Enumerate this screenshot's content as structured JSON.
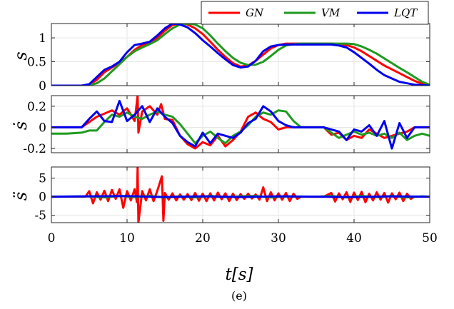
{
  "chart_data": [
    {
      "type": "line",
      "ylabel": "s",
      "xlim": [
        0,
        50
      ],
      "ylim": [
        0,
        1.3
      ],
      "yticks": [
        0,
        0.5,
        1
      ],
      "ytick_labels": [
        "0",
        "0.5",
        "1"
      ],
      "legend": {
        "position": "top-right",
        "entries": [
          "GN",
          "VM",
          "LQT"
        ]
      },
      "series": [
        {
          "name": "GN",
          "color": "#ff0000",
          "x": [
            0,
            4,
            5,
            6,
            7,
            8,
            9,
            10,
            11,
            12,
            13,
            14,
            15,
            16,
            17,
            18,
            19,
            20,
            21,
            22,
            23,
            24,
            25,
            26,
            27,
            28,
            29,
            30,
            31,
            32,
            33,
            34,
            35,
            36,
            37,
            38,
            39,
            40,
            41,
            42,
            43,
            44,
            45,
            46,
            47,
            48,
            49,
            50
          ],
          "y": [
            0,
            0,
            0.02,
            0.12,
            0.28,
            0.38,
            0.48,
            0.6,
            0.75,
            0.85,
            0.9,
            1.0,
            1.15,
            1.27,
            1.3,
            1.28,
            1.2,
            1.08,
            0.92,
            0.75,
            0.6,
            0.47,
            0.4,
            0.42,
            0.52,
            0.65,
            0.78,
            0.85,
            0.88,
            0.88,
            0.88,
            0.88,
            0.88,
            0.88,
            0.88,
            0.87,
            0.85,
            0.8,
            0.72,
            0.62,
            0.52,
            0.42,
            0.34,
            0.26,
            0.18,
            0.1,
            0.04,
            0
          ]
        },
        {
          "name": "VM",
          "color": "#1f9a1f",
          "x": [
            0,
            4,
            5,
            6,
            7,
            8,
            9,
            10,
            11,
            12,
            13,
            14,
            15,
            16,
            17,
            18,
            19,
            20,
            21,
            22,
            23,
            24,
            25,
            26,
            27,
            28,
            29,
            30,
            31,
            32,
            33,
            34,
            35,
            36,
            37,
            38,
            39,
            40,
            41,
            42,
            43,
            44,
            45,
            46,
            47,
            48,
            49,
            50
          ],
          "y": [
            0,
            0,
            0.01,
            0.05,
            0.15,
            0.3,
            0.45,
            0.6,
            0.72,
            0.8,
            0.87,
            0.95,
            1.08,
            1.2,
            1.28,
            1.3,
            1.28,
            1.2,
            1.05,
            0.88,
            0.72,
            0.58,
            0.48,
            0.43,
            0.44,
            0.5,
            0.62,
            0.75,
            0.84,
            0.87,
            0.88,
            0.88,
            0.88,
            0.88,
            0.88,
            0.88,
            0.88,
            0.87,
            0.82,
            0.75,
            0.67,
            0.57,
            0.47,
            0.37,
            0.28,
            0.18,
            0.08,
            0.02
          ]
        },
        {
          "name": "LQT",
          "color": "#0000ee",
          "x": [
            0,
            4,
            5,
            6,
            7,
            8,
            9,
            10,
            11,
            12,
            13,
            14,
            15,
            16,
            17,
            18,
            19,
            20,
            21,
            22,
            23,
            24,
            25,
            26,
            27,
            28,
            29,
            30,
            31,
            32,
            33,
            34,
            35,
            36,
            37,
            38,
            39,
            40,
            41,
            42,
            43,
            44,
            45,
            46,
            47,
            48,
            49,
            50
          ],
          "y": [
            0,
            0,
            0.03,
            0.18,
            0.33,
            0.4,
            0.5,
            0.7,
            0.85,
            0.88,
            0.92,
            1.05,
            1.2,
            1.3,
            1.28,
            1.22,
            1.1,
            0.95,
            0.82,
            0.68,
            0.55,
            0.43,
            0.38,
            0.4,
            0.52,
            0.72,
            0.82,
            0.85,
            0.86,
            0.86,
            0.86,
            0.86,
            0.86,
            0.86,
            0.86,
            0.84,
            0.8,
            0.7,
            0.58,
            0.46,
            0.33,
            0.22,
            0.15,
            0.08,
            0.05,
            0.02,
            0.01,
            0
          ]
        }
      ]
    },
    {
      "type": "line",
      "ylabel": "ṡ",
      "xlim": [
        0,
        50
      ],
      "ylim": [
        -0.24,
        0.3
      ],
      "yticks": [
        -0.2,
        0,
        0.2
      ],
      "ytick_labels": [
        "-0.2",
        "0",
        "0.2"
      ],
      "series": [
        {
          "name": "GN",
          "color": "#ff0000",
          "x": [
            0,
            4,
            5,
            6,
            7,
            8,
            9,
            10,
            11,
            11.4,
            11.5,
            12,
            13,
            14,
            14.5,
            15,
            16,
            17,
            18,
            19,
            20,
            21,
            22,
            23,
            24,
            25,
            26,
            27,
            28,
            29,
            30,
            31,
            32,
            36,
            37,
            38,
            39,
            40,
            41,
            42,
            43,
            44,
            45,
            46,
            47,
            48,
            49,
            50
          ],
          "y": [
            0,
            0,
            0.05,
            0.1,
            0.13,
            0.16,
            0.12,
            0.18,
            0.06,
            0.3,
            -0.05,
            0.15,
            0.2,
            0.12,
            0.22,
            0.08,
            0.07,
            -0.08,
            -0.16,
            -0.2,
            -0.14,
            -0.17,
            -0.08,
            -0.18,
            -0.12,
            -0.04,
            0.1,
            0.14,
            0.08,
            0.05,
            -0.02,
            0.0,
            0.0,
            0.0,
            -0.07,
            -0.05,
            -0.12,
            -0.08,
            -0.1,
            -0.02,
            -0.06,
            -0.1,
            -0.08,
            -0.06,
            -0.04,
            0.0,
            0.0,
            0.0
          ]
        },
        {
          "name": "VM",
          "color": "#1f9a1f",
          "x": [
            0,
            2,
            4,
            5,
            6,
            7,
            8,
            9,
            10,
            11,
            12,
            13,
            14,
            15,
            16,
            17,
            18,
            19,
            20,
            21,
            22,
            23,
            24,
            25,
            26,
            27,
            28,
            29,
            30,
            31,
            32,
            33,
            36,
            38,
            40,
            41,
            42,
            43,
            44,
            45,
            46,
            47,
            48,
            49,
            50
          ],
          "y": [
            -0.06,
            -0.06,
            -0.05,
            -0.03,
            -0.03,
            0.05,
            0.12,
            0.1,
            0.14,
            0.1,
            0.08,
            0.12,
            0.15,
            0.12,
            0.1,
            0.03,
            -0.06,
            -0.15,
            -0.08,
            -0.04,
            -0.1,
            -0.15,
            -0.08,
            -0.04,
            0.02,
            0.1,
            0.14,
            0.12,
            0.16,
            0.15,
            0.06,
            0.0,
            0.0,
            -0.1,
            -0.04,
            -0.07,
            -0.05,
            -0.08,
            -0.06,
            -0.1,
            -0.05,
            -0.12,
            -0.08,
            -0.06,
            -0.08
          ]
        },
        {
          "name": "LQT",
          "color": "#0000ee",
          "x": [
            0,
            4,
            5,
            6,
            7,
            8,
            9,
            10,
            11,
            12,
            13,
            14,
            15,
            16,
            17,
            18,
            19,
            20,
            21,
            22,
            23,
            24,
            25,
            26,
            27,
            28,
            29,
            30,
            31,
            32,
            34,
            36,
            38,
            39,
            40,
            41,
            42,
            43,
            44,
            45,
            46,
            47,
            48,
            49,
            50
          ],
          "y": [
            0,
            0,
            0.08,
            0.15,
            0.06,
            0.05,
            0.25,
            0.06,
            0.12,
            0.2,
            0.05,
            0.18,
            0.1,
            0.04,
            -0.08,
            -0.14,
            -0.18,
            -0.05,
            -0.15,
            -0.06,
            -0.08,
            -0.1,
            -0.05,
            0.04,
            0.08,
            0.2,
            0.15,
            0.06,
            0.02,
            0.0,
            0.0,
            0.0,
            -0.04,
            -0.12,
            -0.02,
            -0.04,
            0.02,
            -0.08,
            0.06,
            -0.2,
            0.04,
            -0.1,
            0.0,
            0.0,
            0.0
          ]
        }
      ]
    },
    {
      "type": "line",
      "ylabel": "s̈",
      "xlabel": "t[s]",
      "xlim": [
        0,
        50
      ],
      "ylim": [
        -7,
        8
      ],
      "yticks": [
        -5,
        0,
        5
      ],
      "ytick_labels": [
        "-5",
        "0",
        "5"
      ],
      "xticks": [
        0,
        10,
        20,
        30,
        40,
        50
      ],
      "xtick_labels": [
        "0",
        "10",
        "20",
        "30",
        "40",
        "50"
      ],
      "series": [
        {
          "name": "GN",
          "color": "#ff0000",
          "x": [
            0,
            4.5,
            5,
            5.5,
            6,
            6.5,
            7,
            7.5,
            8,
            8.5,
            9,
            9.5,
            10,
            10.5,
            11,
            11.3,
            11.4,
            11.5,
            12,
            12.5,
            13,
            13.5,
            14,
            14.6,
            14.8,
            15,
            15.5,
            16,
            16.5,
            17,
            17.5,
            18,
            18.5,
            19,
            19.5,
            20,
            20.5,
            21,
            21.5,
            22,
            22.5,
            23,
            23.5,
            24,
            24.5,
            25,
            25.5,
            26,
            26.5,
            27,
            27.5,
            28,
            28.5,
            29,
            29.5,
            30,
            30.5,
            31,
            31.5,
            32,
            32.5,
            33,
            34,
            35,
            36,
            37,
            37.5,
            38,
            38.5,
            39,
            39.5,
            40,
            40.5,
            41,
            41.5,
            42,
            42.5,
            43,
            43.5,
            44,
            44.5,
            45,
            45.5,
            46,
            46.5,
            47,
            47.5,
            48,
            49,
            50
          ],
          "y": [
            0,
            0,
            1.5,
            -1.8,
            1.2,
            -0.8,
            1.6,
            -1.2,
            1.8,
            -0.6,
            2.0,
            -3.0,
            1.5,
            -1.0,
            2.0,
            -1.5,
            8,
            -7,
            1.5,
            -1.0,
            2.0,
            -1.2,
            1.6,
            5.5,
            -6.5,
            1.0,
            -0.8,
            0.9,
            -1.0,
            0.6,
            -0.8,
            0.7,
            -0.9,
            1.0,
            -1.1,
            0.8,
            -1.2,
            0.9,
            -1.0,
            1.1,
            -0.7,
            0.9,
            -1.2,
            0.8,
            -0.9,
            0.7,
            -0.6,
            0.8,
            -0.5,
            0.6,
            -0.8,
            2.5,
            -1.2,
            1.2,
            -1.0,
            0.9,
            -0.8,
            1.0,
            -1.2,
            0.8,
            -0.6,
            0.0,
            0.0,
            0.0,
            0.0,
            1.0,
            -1.3,
            0.9,
            -0.7,
            1.2,
            -1.4,
            1.1,
            -0.9,
            1.3,
            -1.5,
            0.8,
            -1.0,
            1.2,
            -0.8,
            1.0,
            -1.6,
            0.9,
            -0.7,
            1.1,
            -1.2,
            0.8,
            -0.6,
            0.0,
            0.0,
            0.0
          ]
        },
        {
          "name": "VM",
          "color": "#1f9a1f",
          "x": [
            0,
            5,
            7,
            9,
            11,
            13,
            15,
            17,
            19,
            21,
            23,
            25,
            27,
            29,
            31,
            33,
            35,
            37,
            39,
            41,
            43,
            45,
            47,
            49,
            50
          ],
          "y": [
            0,
            0.1,
            -0.2,
            0.2,
            -0.1,
            0.2,
            -0.2,
            0.1,
            -0.2,
            0.2,
            -0.1,
            0.1,
            0.2,
            -0.2,
            0.1,
            0,
            0,
            0.2,
            -0.2,
            0.2,
            -0.1,
            0.2,
            -0.2,
            0.1,
            0
          ]
        },
        {
          "name": "LQT",
          "color": "#0000ee",
          "x": [
            0,
            5,
            10,
            15,
            20,
            25,
            30,
            35,
            40,
            45,
            50
          ],
          "y": [
            0,
            0.1,
            0.15,
            -0.1,
            0.1,
            -0.1,
            0.1,
            0,
            -0.1,
            0.1,
            0
          ]
        }
      ]
    }
  ],
  "caption": "(e)"
}
